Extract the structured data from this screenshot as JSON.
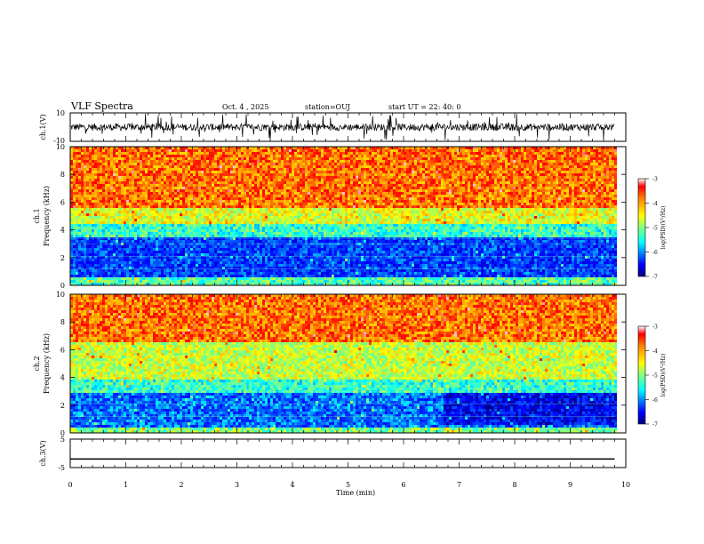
{
  "header": {
    "title": "VLF Spectra",
    "date": "Oct. 4 , 2025",
    "station": "station=OUJ",
    "start": "start UT = 22: 40: 0"
  },
  "colors": {
    "spectrum": [
      "#00007f",
      "#0000ff",
      "#0080ff",
      "#00ffff",
      "#80ff80",
      "#ffff00",
      "#ff8000",
      "#ff0000",
      "#ffb0b0"
    ],
    "trace": "#000000"
  },
  "chart_data": [
    {
      "type": "line",
      "name": "ch1-waveform",
      "ylabel": "ch.1(V)",
      "yticks": [
        "10",
        "-10"
      ],
      "ylim": [
        -10,
        10
      ],
      "x_range_min": [
        0,
        9.8
      ],
      "signal": "noisy baseband waveform, mostly within -4..4 V with frequent spikes to ±10 V"
    },
    {
      "type": "heatmap",
      "name": "ch1-spectrogram",
      "ylabel": "ch.1\nFrequency (kHz)",
      "yticks": [
        "0",
        "2",
        "4",
        "6",
        "8",
        "10"
      ],
      "ylim": [
        0,
        10
      ],
      "x_range_min": [
        0,
        9.8
      ],
      "bands_khz": [
        {
          "from": 0,
          "to": 0.5,
          "level": -5.2
        },
        {
          "from": 0.5,
          "to": 3.4,
          "level": -6.2
        },
        {
          "from": 3.4,
          "to": 4.5,
          "level": -5.3
        },
        {
          "from": 4.5,
          "to": 5.6,
          "level": -4.6
        },
        {
          "from": 5.6,
          "to": 10,
          "level": -3.9
        }
      ],
      "colorbar": {
        "label": "log(PSD)(V²/Hz)",
        "ticks": [
          "-3",
          "-4",
          "-5",
          "-6",
          "-7"
        ],
        "range": [
          -7,
          -3
        ]
      }
    },
    {
      "type": "heatmap",
      "name": "ch2-spectrogram",
      "ylabel": "ch.2\nFrequency (kHz)",
      "yticks": [
        "0",
        "2",
        "4",
        "6",
        "8",
        "10"
      ],
      "ylim": [
        0,
        10
      ],
      "x_range_min": [
        0,
        9.8
      ],
      "bands_khz": [
        {
          "from": 0,
          "to": 0.4,
          "level": -5.0
        },
        {
          "from": 0.4,
          "to": 2.8,
          "level": -6.0
        },
        {
          "from": 2.8,
          "to": 3.8,
          "level": -5.3
        },
        {
          "from": 3.8,
          "to": 6.5,
          "level": -4.7
        },
        {
          "from": 6.5,
          "to": 10,
          "level": -3.9
        }
      ],
      "note": "after ~6.7 min the 0.6–2.8 kHz band darkens to about -6.4",
      "colorbar": {
        "label": "log(PSD)(V²/Hz)",
        "ticks": [
          "-3",
          "-4",
          "-5",
          "-6",
          "-7"
        ],
        "range": [
          -7,
          -3
        ]
      }
    },
    {
      "type": "line",
      "name": "ch3-waveform",
      "ylabel": "ch.3(V)",
      "yticks": [
        "5",
        "0",
        "-5"
      ],
      "ylim": [
        -5,
        5
      ],
      "x_range_min": [
        0,
        9.8
      ],
      "constant_value": -2
    }
  ],
  "xaxis": {
    "label": "Time (min)",
    "ticks": [
      "0",
      "1",
      "2",
      "3",
      "4",
      "5",
      "6",
      "7",
      "8",
      "9",
      "10"
    ],
    "xlim": [
      0,
      10
    ]
  }
}
